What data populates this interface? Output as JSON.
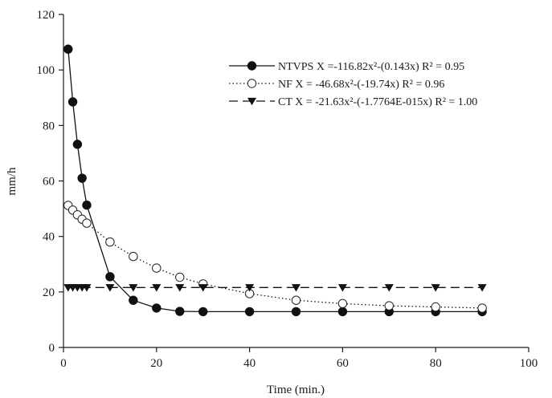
{
  "chart_data": {
    "type": "line",
    "xlabel": "Time (min.)",
    "ylabel": "mm/h",
    "xlim": [
      0,
      100
    ],
    "ylim": [
      0,
      120
    ],
    "xticks": [
      0,
      20,
      40,
      60,
      80,
      100
    ],
    "yticks": [
      0,
      20,
      40,
      60,
      80,
      100,
      120
    ],
    "grid": false,
    "legend_position": "top-right",
    "series": [
      {
        "name": "NTVPS X =-116.82x²-(0.143x) R² = 0.95",
        "marker": "filled-circle",
        "line": "solid",
        "x": [
          1,
          2,
          3,
          4,
          5,
          10,
          15,
          20,
          25,
          30,
          40,
          50,
          60,
          70,
          80,
          90
        ],
        "values": [
          107.5,
          88.5,
          73.2,
          61,
          51.3,
          25.5,
          17,
          14.2,
          13,
          12.9,
          12.9,
          12.9,
          12.9,
          12.9,
          12.9,
          12.9
        ]
      },
      {
        "name": "NF X = -46.68x²-(-19.74x) R² = 0.96",
        "marker": "open-circle",
        "line": "dotted",
        "x": [
          1,
          2,
          3,
          4,
          5,
          10,
          15,
          20,
          25,
          30,
          40,
          50,
          60,
          70,
          80,
          90
        ],
        "values": [
          51.2,
          49.5,
          47.8,
          46.2,
          44.8,
          38,
          32.8,
          28.6,
          25.3,
          22.9,
          19.4,
          17,
          15.8,
          15,
          14.6,
          14.2
        ]
      },
      {
        "name": "CT X = -21.63x²-(-1.7764E-015x) R² = 1.00",
        "marker": "filled-triangle-down",
        "line": "dashed",
        "x": [
          1,
          2,
          3,
          4,
          5,
          10,
          15,
          20,
          25,
          30,
          40,
          50,
          60,
          70,
          80,
          90
        ],
        "values": [
          21.6,
          21.6,
          21.6,
          21.6,
          21.6,
          21.6,
          21.6,
          21.6,
          21.6,
          21.6,
          21.6,
          21.6,
          21.6,
          21.6,
          21.6,
          21.6
        ]
      }
    ]
  }
}
